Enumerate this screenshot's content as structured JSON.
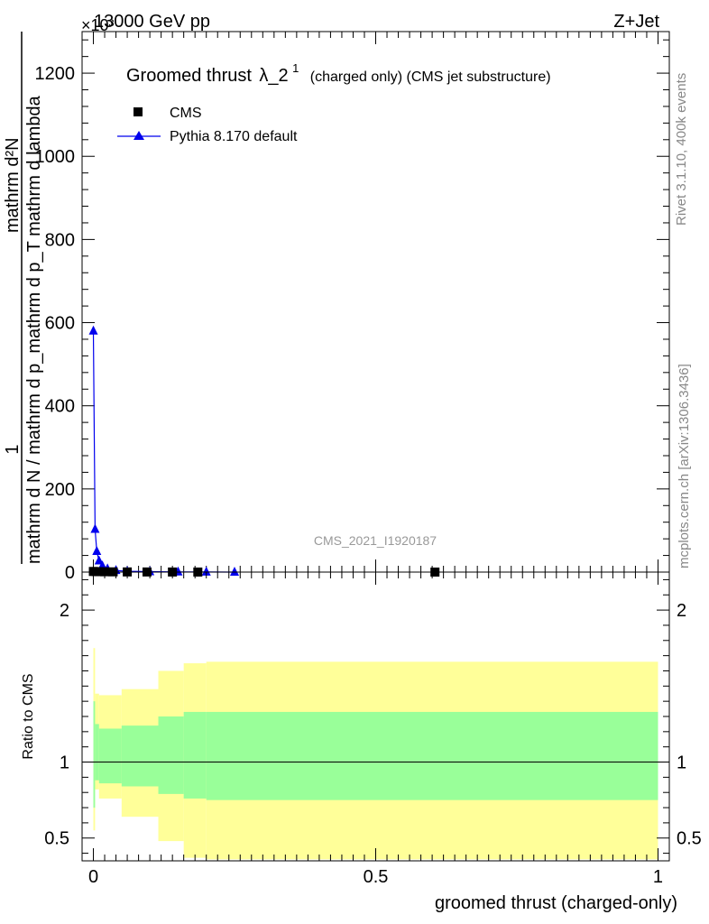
{
  "header": {
    "energy": "13000 GeV pp",
    "process": "Z+Jet",
    "exponent": "×10³"
  },
  "side_labels": {
    "rivet": "Rivet 3.1.10,  400k events",
    "mcplots": "mcplots.cern.ch [arXiv:1306.3436]"
  },
  "main": {
    "title_main": "Groomed thrust",
    "title_lambda": "λ_2",
    "title_sup": "1",
    "title_sub": "(charged only) (CMS jet substructure)",
    "ylabel_top": "1",
    "ylabel_denominator": "mathrm d N / mathrm d p_mathrm d p_T mathrm d lambda",
    "ylabel_numerator": "mathrm d²N",
    "analysis_id": "CMS_2021_I1920187"
  },
  "legend": {
    "cms": "CMS",
    "pythia": "Pythia 8.170 default"
  },
  "ratio": {
    "ylabel": "Ratio to CMS"
  },
  "xlabel": "groomed thrust (charged-only)",
  "colors": {
    "cms_marker": "#000000",
    "pythia": "#0000ee",
    "band_outer": "#ffff99",
    "band_inner": "#99ff99",
    "ratio_line": "#000000"
  },
  "chart_data": [
    {
      "type": "line",
      "panel": "main",
      "xlim": [
        -0.02,
        1.02
      ],
      "ylim": [
        0,
        1300
      ],
      "y_scale_note": "×10³",
      "x_ticks": [
        "0",
        "0.5",
        "1"
      ],
      "y_ticks": [
        "0",
        "200",
        "400",
        "600",
        "800",
        "1000",
        "1200"
      ],
      "series": [
        {
          "name": "CMS",
          "marker": "square",
          "points": [
            {
              "x": 0.0,
              "y": 1.5
            },
            {
              "x": 0.005,
              "y": 1.2
            },
            {
              "x": 0.01,
              "y": 1.0
            },
            {
              "x": 0.02,
              "y": 0.8
            },
            {
              "x": 0.035,
              "y": 0.6
            },
            {
              "x": 0.06,
              "y": 0.4
            },
            {
              "x": 0.095,
              "y": 0.3
            },
            {
              "x": 0.14,
              "y": 0.2
            },
            {
              "x": 0.185,
              "y": 0.1
            },
            {
              "x": 0.605,
              "y": 0.05
            }
          ]
        },
        {
          "name": "Pythia 8.170 default",
          "marker": "triangle",
          "points": [
            {
              "x": 0.0,
              "y": 580
            },
            {
              "x": 0.003,
              "y": 103
            },
            {
              "x": 0.006,
              "y": 50
            },
            {
              "x": 0.01,
              "y": 27
            },
            {
              "x": 0.016,
              "y": 15
            },
            {
              "x": 0.025,
              "y": 8
            },
            {
              "x": 0.04,
              "y": 4
            },
            {
              "x": 0.06,
              "y": 2
            },
            {
              "x": 0.1,
              "y": 1
            },
            {
              "x": 0.15,
              "y": 0.5
            },
            {
              "x": 0.2,
              "y": 0.2
            },
            {
              "x": 0.25,
              "y": 0.1
            }
          ]
        }
      ]
    },
    {
      "type": "area",
      "panel": "ratio",
      "xlim": [
        -0.02,
        1.02
      ],
      "ylim": [
        0.35,
        2.25
      ],
      "x_ticks": [
        "0",
        "0.5",
        "1"
      ],
      "y_ticks": [
        "0.5",
        "1",
        "2"
      ],
      "reference_line": 1.0,
      "bands": [
        {
          "x0": 0.0,
          "x1": 0.003,
          "outer": [
            0.55,
            1.75
          ],
          "inner": [
            0.7,
            1.4
          ]
        },
        {
          "x0": 0.003,
          "x1": 0.01,
          "outer": [
            0.82,
            1.45
          ],
          "inner": [
            0.88,
            1.25
          ]
        },
        {
          "x0": 0.01,
          "x1": 0.05,
          "outer": [
            0.76,
            1.44
          ],
          "inner": [
            0.86,
            1.22
          ]
        },
        {
          "x0": 0.05,
          "x1": 0.115,
          "outer": [
            0.64,
            1.48
          ],
          "inner": [
            0.84,
            1.24
          ]
        },
        {
          "x0": 0.115,
          "x1": 0.16,
          "outer": [
            0.48,
            1.6
          ],
          "inner": [
            0.79,
            1.3
          ]
        },
        {
          "x0": 0.16,
          "x1": 0.2,
          "outer": [
            0.37,
            1.65
          ],
          "inner": [
            0.76,
            1.33
          ]
        },
        {
          "x0": 0.2,
          "x1": 1.0,
          "outer": [
            0.36,
            1.66
          ],
          "inner": [
            0.75,
            1.33
          ]
        }
      ]
    }
  ]
}
